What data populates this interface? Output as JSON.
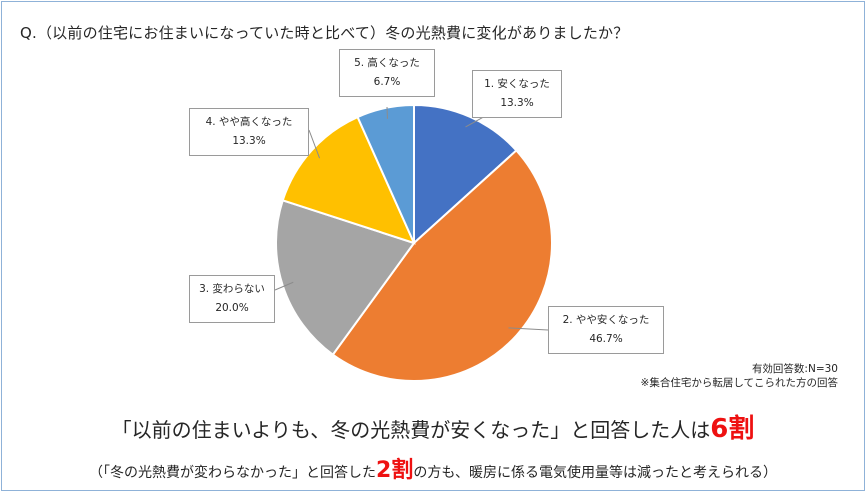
{
  "question": "Q.（以前の住宅にお住まいになっていた時と比べて）冬の光熱費に変化がありましたか？",
  "chart_data": {
    "type": "pie",
    "slices": [
      {
        "label": "1. 安くなった",
        "value": 13.3,
        "value_label": "13.3%",
        "color": "#4472c4"
      },
      {
        "label": "2. やや安くなった",
        "value": 46.7,
        "value_label": "46.7%",
        "color": "#ed7d31"
      },
      {
        "label": "3. 変わらない",
        "value": 20.0,
        "value_label": "20.0%",
        "color": "#a5a5a5"
      },
      {
        "label": "4. やや高くなった",
        "value": 13.3,
        "value_label": "13.3%",
        "color": "#ffc000"
      },
      {
        "label": "5. 高くなった",
        "value": 6.7,
        "value_label": "6.7%",
        "color": "#5b9bd5"
      }
    ]
  },
  "notes": {
    "line1": "有効回答数:N=30",
    "line2": "※集合住宅から転居してこられた方の回答"
  },
  "headline": {
    "before": "「以前の住まいよりも、冬の光熱費が安くなった」と回答した人は",
    "highlight": "6割"
  },
  "subline": {
    "before": "（「冬の光熱費が変わらなかった」と回答した",
    "highlight": "2割",
    "after": "の方も、暖房に係る電気使用量等は減ったと考えられる）"
  }
}
